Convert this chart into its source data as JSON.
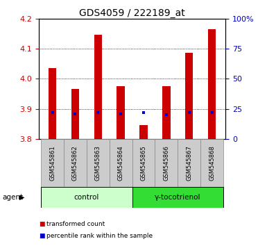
{
  "title": "GDS4059 / 222189_at",
  "samples": [
    "GSM545861",
    "GSM545862",
    "GSM545863",
    "GSM545864",
    "GSM545865",
    "GSM545866",
    "GSM545867",
    "GSM545868"
  ],
  "transformed_counts": [
    4.035,
    3.965,
    4.145,
    3.975,
    3.845,
    3.975,
    4.085,
    4.165
  ],
  "percentile_ranks": [
    22,
    21,
    22,
    21,
    22,
    20,
    22,
    22
  ],
  "ylim": [
    3.8,
    4.2
  ],
  "yticks": [
    3.8,
    3.9,
    4.0,
    4.1,
    4.2
  ],
  "right_yticks": [
    0,
    25,
    50,
    75,
    100
  ],
  "bar_color": "#cc0000",
  "percentile_color": "#0000cc",
  "bar_bottom": 3.8,
  "groups": [
    {
      "label": "control",
      "indices": [
        0,
        1,
        2,
        3
      ],
      "color": "#ccffcc"
    },
    {
      "label": "γ-tocotrienol",
      "indices": [
        4,
        5,
        6,
        7
      ],
      "color": "#33dd33"
    }
  ],
  "agent_label": "agent",
  "legend_items": [
    {
      "label": "transformed count",
      "color": "#cc0000"
    },
    {
      "label": "percentile rank within the sample",
      "color": "#0000cc"
    }
  ],
  "tick_label_color_left": "#cc0000",
  "tick_label_color_right": "#0000cc",
  "title_fontsize": 10,
  "bar_width": 0.35,
  "grid_lines": [
    3.9,
    4.0,
    4.1
  ],
  "sample_box_color": "#cccccc",
  "sample_box_edge": "#888888"
}
